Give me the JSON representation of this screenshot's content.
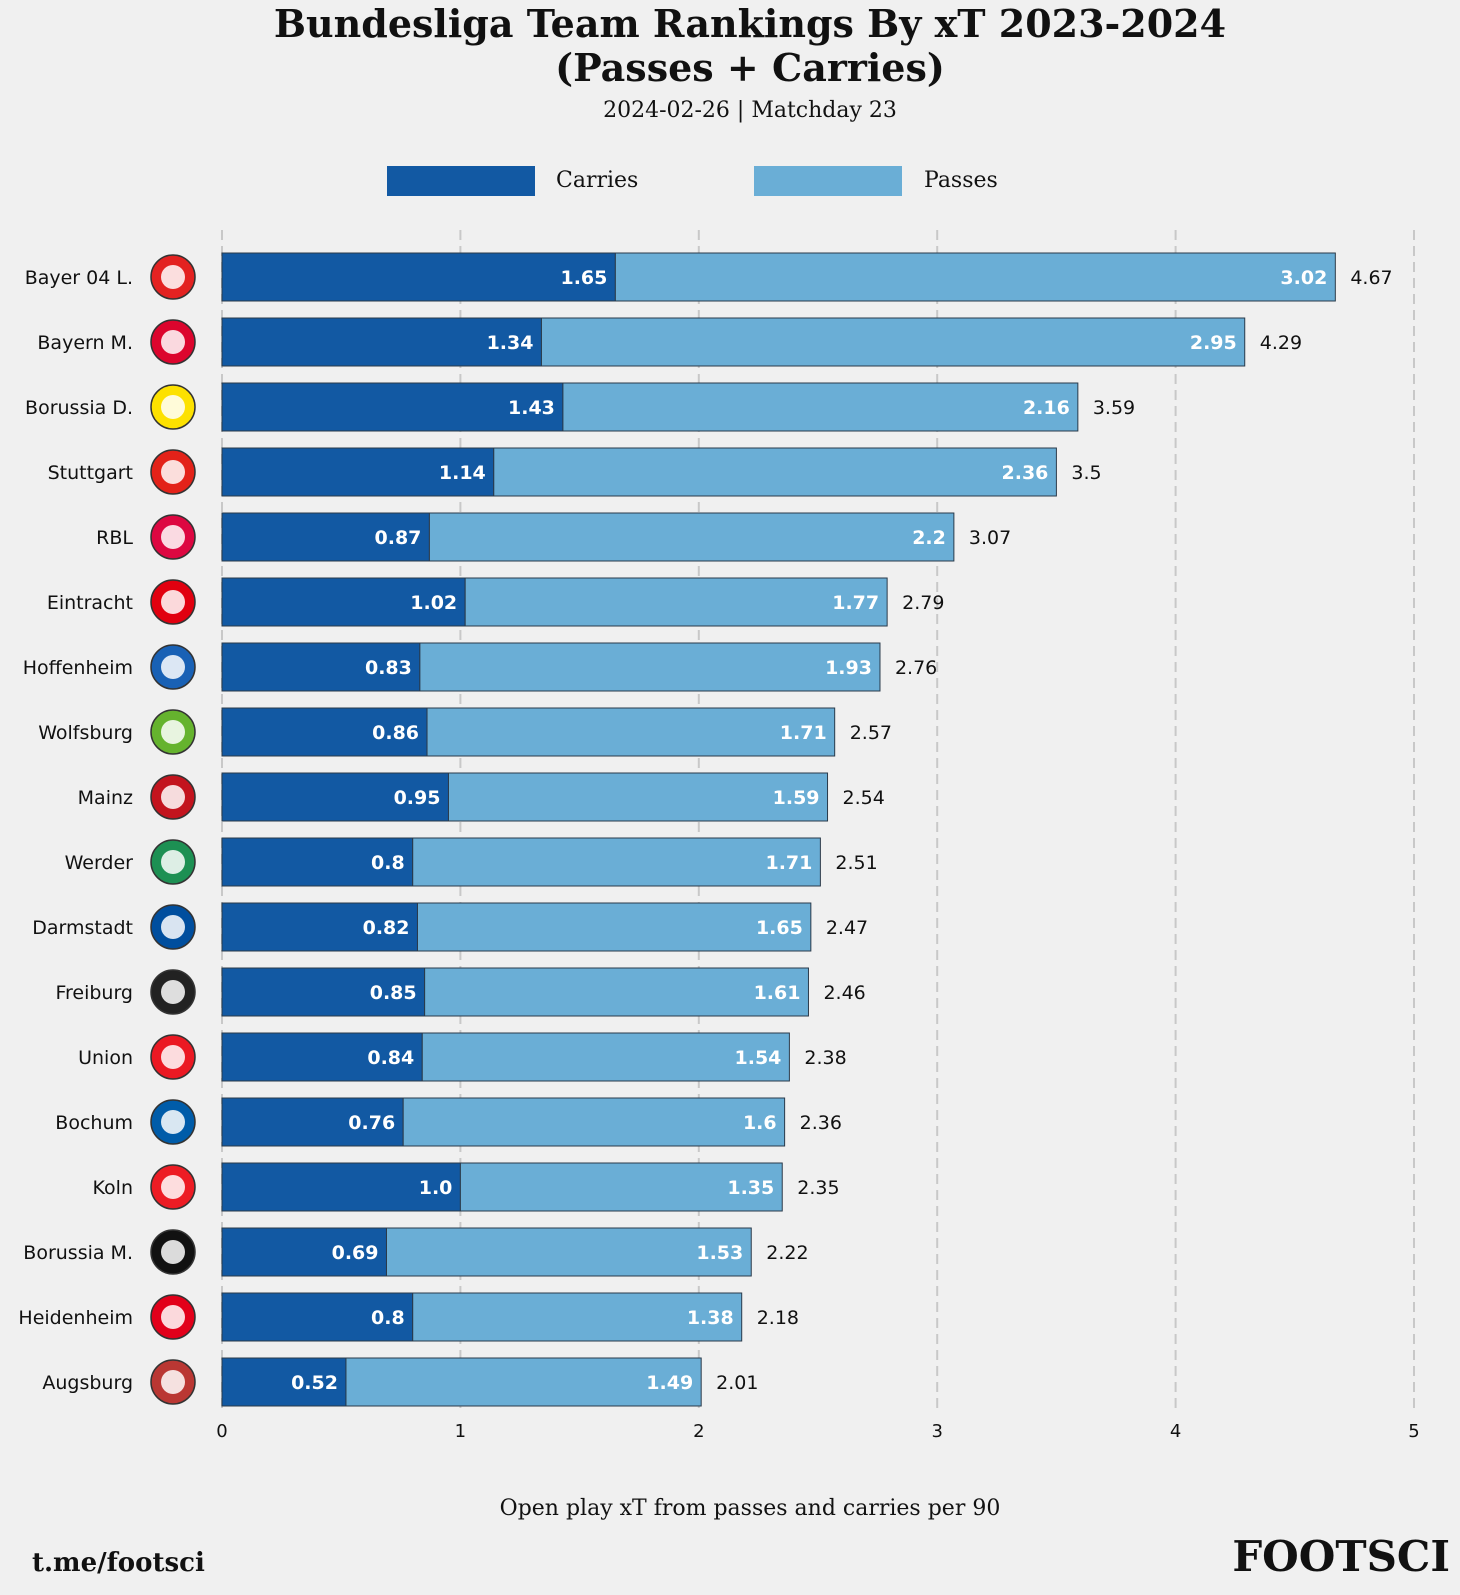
{
  "chart_data": {
    "type": "bar",
    "orientation": "horizontal",
    "stacked": true,
    "title": "Bundesliga Team Rankings By xT 2023-2024",
    "title_line2": "(Passes + Carries)",
    "subtitle": "2024-02-26 | Matchday 23",
    "xlabel": "Open play xT from passes and carries per 90",
    "ylabel": "",
    "xlim": [
      0,
      5
    ],
    "xticks": [
      "0",
      "1",
      "2",
      "3",
      "4",
      "5"
    ],
    "grid": "vertical dashed",
    "legend_position": "top-center",
    "categories": [
      "Bayer 04 L.",
      "Bayern M.",
      "Borussia D.",
      "Stuttgart",
      "RBL",
      "Eintracht",
      "Hoffenheim",
      "Wolfsburg",
      "Mainz",
      "Werder",
      "Darmstadt",
      "Freiburg",
      "Union",
      "Bochum",
      "Koln",
      "Borussia M.",
      "Heidenheim",
      "Augsburg"
    ],
    "series": [
      {
        "name": "Carries",
        "color": "#1259a3",
        "values": [
          1.65,
          1.34,
          1.43,
          1.14,
          0.87,
          1.02,
          0.83,
          0.86,
          0.95,
          0.8,
          0.82,
          0.85,
          0.84,
          0.76,
          1.0,
          0.69,
          0.8,
          0.52
        ],
        "labels": [
          "1.65",
          "1.34",
          "1.43",
          "1.14",
          "0.87",
          "1.02",
          "0.83",
          "0.86",
          "0.95",
          "0.8",
          "0.82",
          "0.85",
          "0.84",
          "0.76",
          "1.0",
          "0.69",
          "0.8",
          "0.52"
        ]
      },
      {
        "name": "Passes",
        "color": "#6aaed6",
        "values": [
          3.02,
          2.95,
          2.16,
          2.36,
          2.2,
          1.77,
          1.93,
          1.71,
          1.59,
          1.71,
          1.65,
          1.61,
          1.54,
          1.6,
          1.35,
          1.53,
          1.38,
          1.49
        ],
        "labels": [
          "3.02",
          "2.95",
          "2.16",
          "2.36",
          "2.2",
          "1.77",
          "1.93",
          "1.71",
          "1.59",
          "1.71",
          "1.65",
          "1.61",
          "1.54",
          "1.6",
          "1.35",
          "1.53",
          "1.38",
          "1.49"
        ]
      }
    ],
    "totals": [
      "4.67",
      "4.29",
      "3.59",
      "3.5",
      "3.07",
      "2.79",
      "2.76",
      "2.57",
      "2.54",
      "2.51",
      "2.47",
      "2.46",
      "2.38",
      "2.36",
      "2.35",
      "2.22",
      "2.18",
      "2.01"
    ],
    "team_logos": [
      "bayer-leverkusen-logo",
      "bayern-munich-logo",
      "borussia-dortmund-logo",
      "vfb-stuttgart-logo",
      "rb-leipzig-logo",
      "eintracht-frankfurt-logo",
      "hoffenheim-logo",
      "wolfsburg-logo",
      "mainz-logo",
      "werder-bremen-logo",
      "darmstadt-logo",
      "freiburg-logo",
      "union-berlin-logo",
      "bochum-logo",
      "koln-logo",
      "gladbach-logo",
      "heidenheim-logo",
      "augsburg-logo"
    ],
    "logo_colors": [
      "#e32221",
      "#dc052d",
      "#fde100",
      "#e32219",
      "#dd0741",
      "#e1000f",
      "#1961b5",
      "#65b32e",
      "#c3141e",
      "#1d9053",
      "#004e9e",
      "#222222",
      "#eb1923",
      "#005ca9",
      "#ed1c24",
      "#111111",
      "#e2001a",
      "#ba3733"
    ]
  },
  "legend": {
    "carries": "Carries",
    "passes": "Passes"
  },
  "footer": {
    "left": "t.me/footsci",
    "right": "FOOTSCI"
  }
}
